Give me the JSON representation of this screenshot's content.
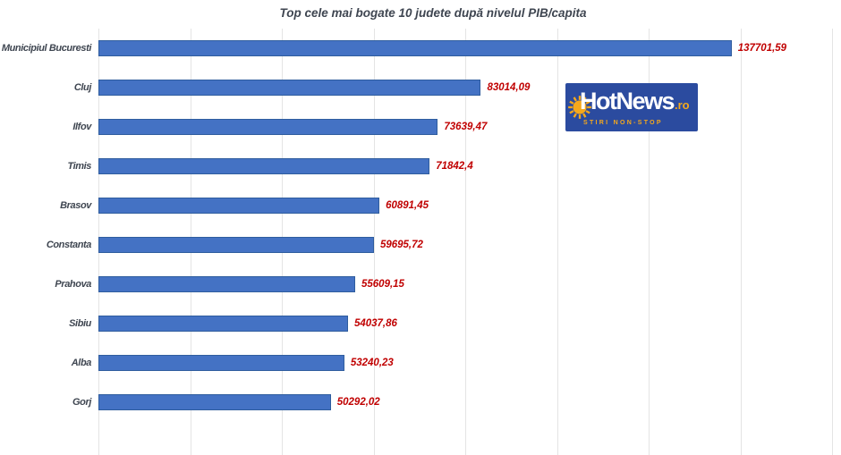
{
  "chart_data": {
    "type": "bar",
    "orientation": "horizontal",
    "title": "Top cele mai bogate 10 judete după nivelul PIB/capita",
    "categories": [
      "Municipiul Bucuresti",
      "Cluj",
      "Ilfov",
      "Timis",
      "Brasov",
      "Constanta",
      "Prahova",
      "Sibiu",
      "Alba",
      "Gorj"
    ],
    "values": [
      137701.59,
      83014.09,
      73639.47,
      71842.4,
      60891.45,
      59695.72,
      55609.15,
      54037.86,
      53240.23,
      50292.02
    ],
    "value_labels": [
      "137701,59",
      "83014,09",
      "73639,47",
      "71842,4",
      "60891,45",
      "59695,72",
      "55609,15",
      "54037,86",
      "53240,23",
      "50292,02"
    ],
    "xlabel": "",
    "ylabel": "",
    "xlim": [
      0,
      160000
    ],
    "grid_step": 20000,
    "grid": true,
    "legend": false,
    "colors": {
      "bar_fill": "#4472C4",
      "bar_border": "#2F5D9E",
      "value_label": "#C00000",
      "category_label": "#3F4651",
      "gridline": "#E4E4E4",
      "background": "#FFFFFF"
    }
  },
  "logo": {
    "name": "HotNews.ro",
    "text_main": "HotNews",
    "text_suffix": ".ro",
    "tagline": "STIRI NON-STOP",
    "colors": {
      "background": "#2B4B9F",
      "sun": "#F5A81C"
    }
  }
}
